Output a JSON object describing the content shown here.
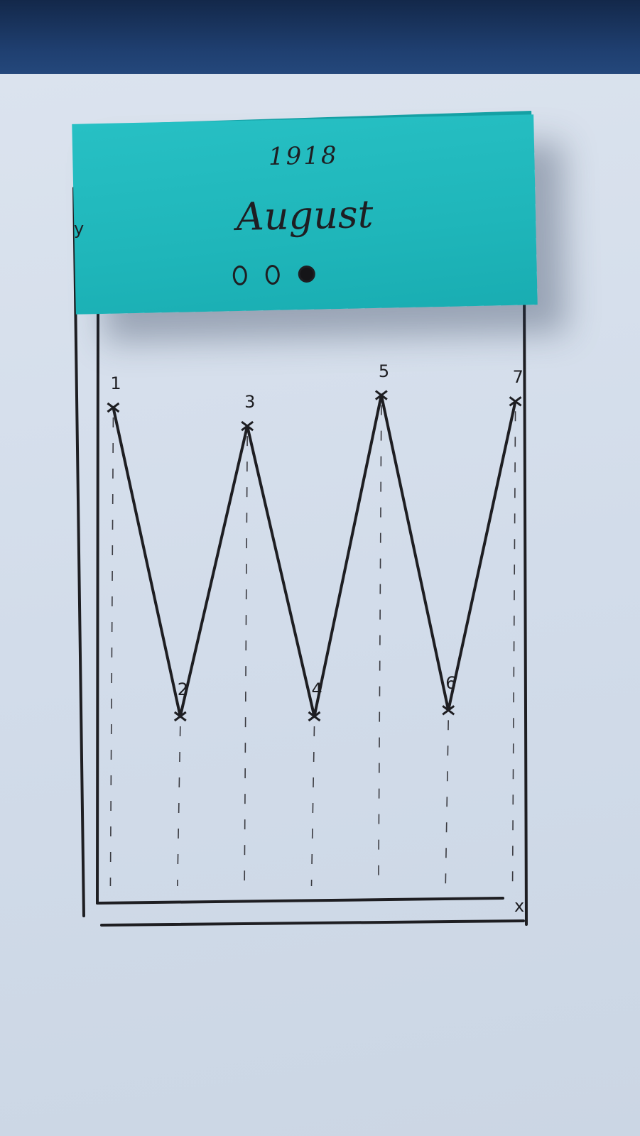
{
  "sticky_note": {
    "year": "1918",
    "month": "August",
    "page_dots": [
      {
        "name": "page-dot-1",
        "active": false
      },
      {
        "name": "page-dot-2",
        "active": false
      },
      {
        "name": "page-dot-3",
        "active": true
      }
    ]
  },
  "chart_data": {
    "type": "line",
    "xlabel": "x",
    "ylabel": "y",
    "x": [
      1,
      2,
      3,
      4,
      5,
      6,
      7
    ],
    "point_labels": [
      "1",
      "2",
      "3",
      "4",
      "5",
      "6",
      "7"
    ],
    "series": [
      {
        "values": [
          0.8,
          0.3,
          0.77,
          0.3,
          0.82,
          0.31,
          0.81
        ]
      }
    ],
    "ylim": [
      0,
      1
    ],
    "xlim": [
      0.9,
      7.1
    ],
    "grid": false,
    "drop_lines": true
  },
  "colors": {
    "ink": "#1e1e22",
    "sticky": "#1fb6ba",
    "paper": "#d6dfeb",
    "cloth": "#1f3f70"
  }
}
